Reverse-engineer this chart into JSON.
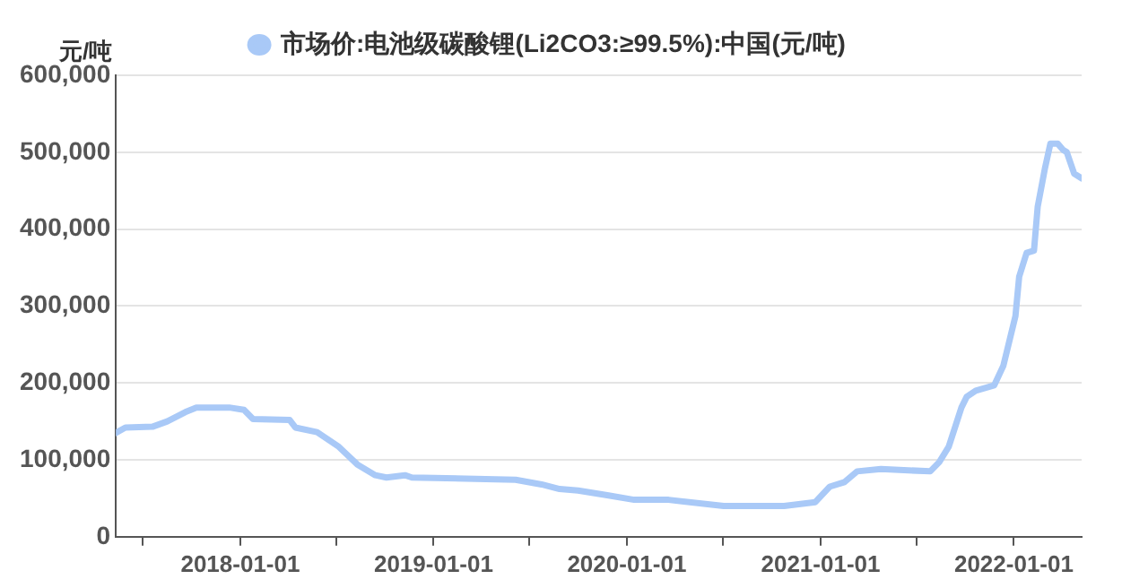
{
  "chart_data": {
    "type": "line",
    "ylabel": "元/吨",
    "legend": "top",
    "grid": "y",
    "marker": "none",
    "line_style": "solid",
    "x": [
      "2017-05-11",
      "2017-05-29",
      "2017-07-19",
      "2017-08-16",
      "2017-09-19",
      "2017-10-10",
      "2017-12-11",
      "2018-01-08",
      "2018-01-25",
      "2018-04-04",
      "2018-04-15",
      "2018-05-26",
      "2018-07-06",
      "2018-08-10",
      "2018-09-13",
      "2018-10-04",
      "2018-11-08",
      "2018-11-21",
      "2019-06-05",
      "2019-07-24",
      "2019-08-27",
      "2019-10-01",
      "2019-11-25",
      "2020-01-15",
      "2020-03-20",
      "2020-07-02",
      "2020-10-24",
      "2020-12-22",
      "2021-01-18",
      "2021-02-15",
      "2021-03-11",
      "2021-04-25",
      "2021-07-27",
      "2021-08-13",
      "2021-08-31",
      "2021-09-24",
      "2021-10-04",
      "2021-10-21",
      "2021-11-25",
      "2021-12-12",
      "2022-01-04",
      "2022-01-11",
      "2022-01-25",
      "2022-02-08",
      "2022-02-15",
      "2022-03-01",
      "2022-03-11",
      "2022-03-25",
      "2022-04-04",
      "2022-04-11",
      "2022-04-25",
      "2022-05-09"
    ],
    "series": [
      {
        "name": "市场价:电池级碳酸锂(Li2CO3:≥99.5%):中国(元/吨)",
        "color": "#a9c9f7",
        "values": [
          135000,
          142000,
          143000,
          150000,
          162000,
          168000,
          168000,
          165000,
          153000,
          152000,
          142000,
          136000,
          117000,
          94000,
          80000,
          77000,
          80000,
          77000,
          74000,
          68000,
          62000,
          60000,
          54000,
          48000,
          48000,
          40000,
          40000,
          45000,
          65000,
          71000,
          85000,
          88000,
          85000,
          97000,
          117000,
          168000,
          182000,
          190000,
          197000,
          222000,
          287000,
          338000,
          369000,
          372000,
          429000,
          480000,
          511000,
          511000,
          503000,
          500000,
          472000,
          466000
        ]
      }
    ],
    "xlim": [
      "2017-05-11",
      "2022-05-09"
    ],
    "xticks": [
      {
        "value": "2017-07-01",
        "label": null
      },
      "2018-01-01",
      {
        "value": "2018-07-01",
        "label": null
      },
      "2019-01-01",
      {
        "value": "2019-07-01",
        "label": null
      },
      "2020-01-01",
      {
        "value": "2020-07-01",
        "label": null
      },
      "2021-01-01",
      {
        "value": "2021-07-01",
        "label": null
      },
      "2022-01-01"
    ],
    "ylim": [
      0,
      600000
    ],
    "yticks": [
      0,
      {
        "value": 100000,
        "label": "100,000"
      },
      {
        "value": 200000,
        "label": "200,000"
      },
      {
        "value": 300000,
        "label": "300,000"
      },
      {
        "value": 400000,
        "label": "400,000"
      },
      {
        "value": 500000,
        "label": "500,000"
      },
      {
        "value": 600000,
        "label": "600,000"
      }
    ]
  }
}
